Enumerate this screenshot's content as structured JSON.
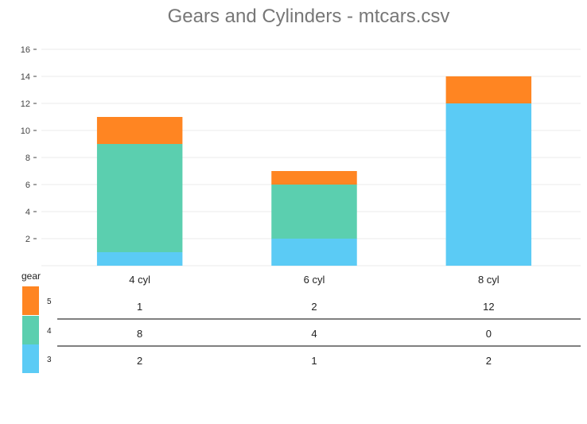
{
  "chart_data": {
    "type": "bar",
    "stacked": true,
    "title": "Gears and Cylinders - mtcars.csv",
    "categories": [
      "4 cyl",
      "6 cyl",
      "8 cyl"
    ],
    "series": [
      {
        "name": "3",
        "values": [
          1,
          2,
          12
        ],
        "color": "#5BCBF5"
      },
      {
        "name": "4",
        "values": [
          8,
          4,
          0
        ],
        "color": "#5BCFAF"
      },
      {
        "name": "5",
        "values": [
          2,
          1,
          2
        ],
        "color": "#FF8522"
      }
    ],
    "ylim": [
      0,
      16
    ],
    "yticks": [
      2,
      4,
      6,
      8,
      10,
      12,
      14,
      16
    ],
    "grid": true,
    "legend": {
      "title": "gear",
      "position": "left",
      "order": [
        "5",
        "4",
        "3"
      ]
    },
    "table": {
      "rows": [
        [
          "1",
          "2",
          "12"
        ],
        [
          "8",
          "4",
          "0"
        ],
        [
          "2",
          "1",
          "2"
        ]
      ]
    }
  }
}
